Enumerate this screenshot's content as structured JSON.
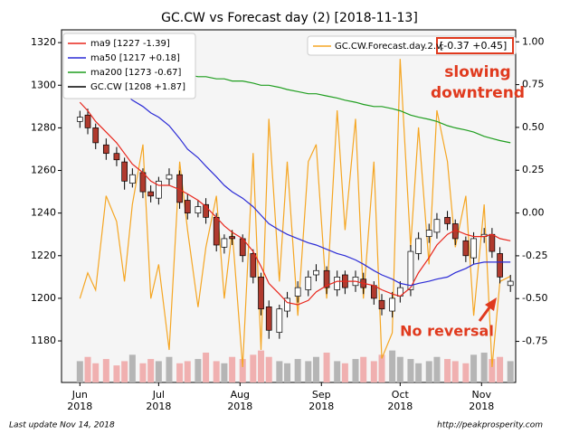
{
  "chart_data": {
    "type": "candlestick",
    "title": "GC.CW vs Forecast day (2)  [2018-11-13]",
    "x": [
      0,
      3,
      6,
      10,
      14,
      17,
      20,
      24,
      27,
      30,
      34,
      38,
      41,
      45,
      48,
      52,
      55,
      58,
      62,
      66,
      69,
      72,
      76,
      79,
      83,
      87,
      90,
      94,
      98,
      101,
      105,
      108,
      112,
      115,
      119,
      122,
      126,
      129,
      133,
      136,
      140,
      143,
      147,
      150,
      154,
      157,
      160,
      164
    ],
    "xlim": [
      -7,
      166
    ],
    "xticks": [
      {
        "value": 0,
        "label": "Jun\n2018"
      },
      {
        "value": 30,
        "label": "Jul\n2018"
      },
      {
        "value": 61,
        "label": "Aug\n2018"
      },
      {
        "value": 92,
        "label": "Sep\n2018"
      },
      {
        "value": 122,
        "label": "Oct\n2018"
      },
      {
        "value": 153,
        "label": "Nov\n2018"
      }
    ],
    "ylim": [
      1160.5,
      1326
    ],
    "yticks": [
      1180,
      1200,
      1220,
      1240,
      1260,
      1280,
      1300,
      1320
    ],
    "y2lim": [
      -0.99,
      1.07
    ],
    "y2ticks": [
      {
        "value": 1,
        "label": "1.00"
      },
      {
        "value": 0.75,
        "label": "0.75"
      },
      {
        "value": 0.5,
        "label": "0.50"
      },
      {
        "value": 0.25,
        "label": "0.25"
      },
      {
        "value": 0,
        "label": "0.00"
      },
      {
        "value": -0.25,
        "label": "-0.25"
      },
      {
        "value": -0.5,
        "label": "-0.50"
      },
      {
        "value": -0.75,
        "label": "-0.75"
      }
    ],
    "candles": {
      "name": "GC.CW [1208 +1.87]",
      "color": "#000000",
      "down_color": "#b03a2e",
      "up_color": "#ffffff",
      "open": [
        1283,
        1286,
        1280,
        1272,
        1268,
        1264,
        1254,
        1259,
        1250,
        1247,
        1256,
        1258,
        1246,
        1240,
        1244,
        1238,
        1224,
        1229,
        1228,
        1221,
        1210,
        1196,
        1184,
        1194,
        1201,
        1204,
        1211,
        1213,
        1204,
        1211,
        1206,
        1209,
        1206,
        1199,
        1194,
        1201,
        1204,
        1221,
        1229,
        1231,
        1238,
        1235,
        1227,
        1219,
        1229,
        1230,
        1221,
        1206
      ],
      "high": [
        1288,
        1289,
        1282,
        1275,
        1271,
        1266,
        1261,
        1261,
        1253,
        1257,
        1261,
        1260,
        1249,
        1246,
        1247,
        1240,
        1230,
        1232,
        1230,
        1223,
        1212,
        1199,
        1197,
        1203,
        1208,
        1213,
        1216,
        1215,
        1213,
        1213,
        1213,
        1212,
        1208,
        1202,
        1203,
        1208,
        1225,
        1231,
        1235,
        1240,
        1241,
        1237,
        1229,
        1231,
        1233,
        1233,
        1224,
        1211
      ],
      "low": [
        1280,
        1277,
        1270,
        1265,
        1262,
        1251,
        1252,
        1247,
        1245,
        1244,
        1253,
        1242,
        1237,
        1238,
        1235,
        1222,
        1221,
        1225,
        1217,
        1207,
        1192,
        1181,
        1181,
        1191,
        1198,
        1201,
        1208,
        1202,
        1201,
        1202,
        1203,
        1202,
        1197,
        1192,
        1191,
        1198,
        1201,
        1218,
        1226,
        1228,
        1232,
        1225,
        1217,
        1216,
        1226,
        1219,
        1207,
        1203
      ],
      "close": [
        1285,
        1280,
        1273,
        1268,
        1265,
        1255,
        1258,
        1250,
        1248,
        1255,
        1258,
        1245,
        1240,
        1243,
        1238,
        1225,
        1228,
        1228,
        1220,
        1210,
        1195,
        1185,
        1195,
        1200,
        1205,
        1210,
        1213,
        1205,
        1210,
        1205,
        1210,
        1205,
        1200,
        1195,
        1200,
        1205,
        1222,
        1228,
        1232,
        1237,
        1235,
        1228,
        1220,
        1228,
        1230,
        1222,
        1210,
        1208
      ]
    },
    "series": [
      {
        "name": "ma9 [1227 -1.39]",
        "color": "#e8261c",
        "values": [
          1292,
          1288,
          1283,
          1278,
          1273,
          1268,
          1263,
          1259,
          1255,
          1253,
          1253,
          1251,
          1249,
          1246,
          1243,
          1238,
          1234,
          1231,
          1228,
          1222,
          1215,
          1207,
          1202,
          1198,
          1197,
          1199,
          1203,
          1206,
          1208,
          1208,
          1208,
          1207,
          1206,
          1204,
          1202,
          1201,
          1205,
          1212,
          1219,
          1225,
          1230,
          1232,
          1230,
          1229,
          1229,
          1230,
          1228,
          1227
        ]
      },
      {
        "name": "ma50 [1217 +0.18]",
        "color": "#2b2bd6",
        "values": [
          null,
          1321,
          1314,
          1306,
          1300,
          1296,
          1293,
          1290,
          1287,
          1285,
          1281,
          1275,
          1270,
          1266,
          1262,
          1257,
          1253,
          1250,
          1247,
          1243,
          1239,
          1235,
          1232,
          1230,
          1228,
          1226,
          1225,
          1223,
          1221,
          1220,
          1218,
          1216,
          1213,
          1211,
          1209,
          1207,
          1206,
          1207,
          1208,
          1209,
          1210,
          1212,
          1214,
          1216,
          1217,
          1217,
          1217,
          1217
        ]
      },
      {
        "name": "ma200 [1273 -0.67]",
        "color": "#1f9e1f",
        "values": [
          1312,
          1311,
          1311,
          1310,
          1309,
          1309,
          1308,
          1307,
          1307,
          1306,
          1306,
          1305,
          1305,
          1304,
          1304,
          1303,
          1303,
          1302,
          1302,
          1301,
          1300,
          1300,
          1299,
          1298,
          1297,
          1296,
          1296,
          1295,
          1294,
          1293,
          1292,
          1291,
          1290,
          1290,
          1289,
          1288,
          1286,
          1285,
          1284,
          1283,
          1281,
          1280,
          1279,
          1278,
          1276,
          1275,
          1274,
          1273
        ]
      },
      {
        "name": "GC.CW.Forecast.day.2.v:",
        "color": "#f5a623",
        "axis": "y2",
        "values": [
          -0.5,
          -0.35,
          -0.45,
          0.1,
          -0.05,
          -0.4,
          0.05,
          0.4,
          -0.5,
          -0.3,
          -0.8,
          0.3,
          -0.1,
          -0.55,
          -0.2,
          0.1,
          -0.5,
          -0.1,
          -0.9,
          0.35,
          -0.8,
          0.55,
          -0.4,
          0.3,
          -0.6,
          0.3,
          0.4,
          -0.5,
          0.6,
          -0.1,
          0.55,
          -0.5,
          0.3,
          -0.85,
          -0.7,
          0.9,
          -0.2,
          0.5,
          -0.3,
          0.6,
          0.3,
          -0.2,
          0.1,
          -0.6,
          0.05,
          -0.9,
          -0.4,
          -0.37
        ]
      }
    ],
    "volume": {
      "up_color": "#b5b5b5",
      "down_color": "#f0b0b0",
      "values": [
        10,
        12,
        9,
        11,
        8,
        10,
        13,
        9,
        11,
        10,
        12,
        9,
        10,
        11,
        14,
        10,
        9,
        12,
        11,
        13,
        15,
        12,
        10,
        9,
        11,
        10,
        12,
        14,
        10,
        9,
        11,
        12,
        10,
        13,
        15,
        12,
        11,
        9,
        10,
        12,
        11,
        10,
        9,
        13,
        14,
        11,
        12,
        10
      ]
    },
    "forecast_legend_value": "[-0.37 +0.45]",
    "annotations": [
      "slowing",
      "downtrend",
      "No reversal"
    ],
    "footer_left": "Last update Nov 14, 2018",
    "footer_right": "http://peakprosperity.com"
  }
}
